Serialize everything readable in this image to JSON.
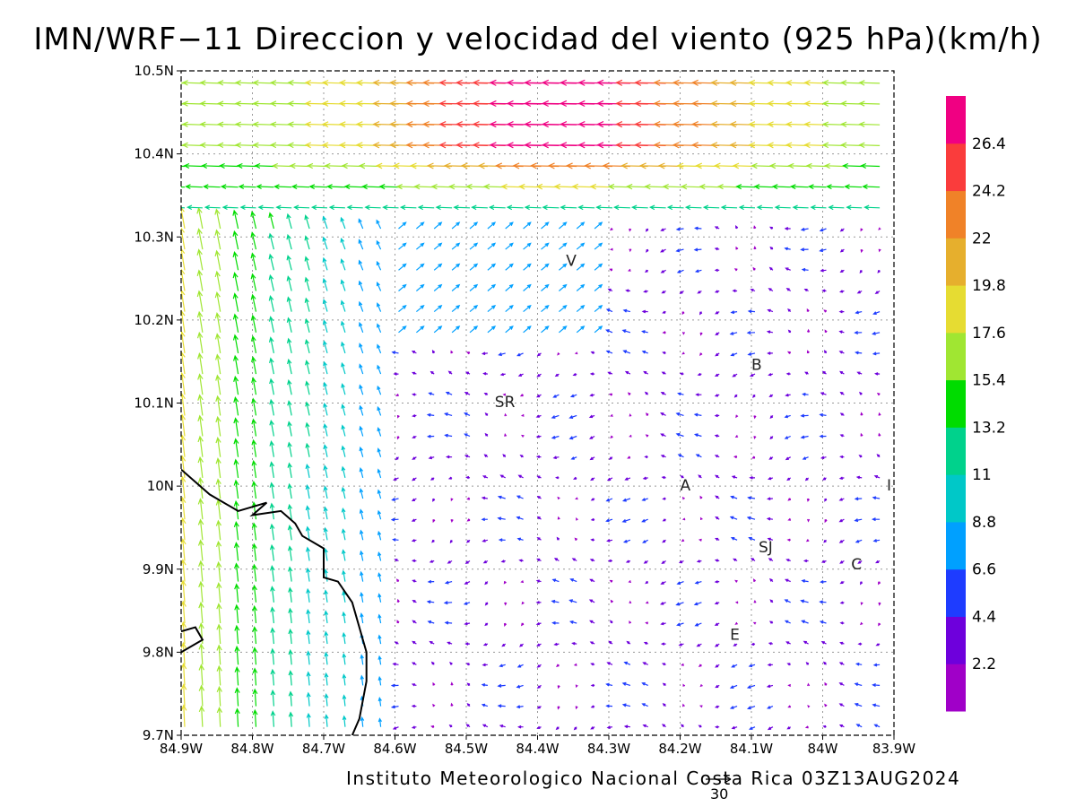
{
  "title": "IMN/WRF−11 Direccion y velocidad del viento (925 hPa)(km/h)",
  "credit": "Instituto Meteorologico Nacional Costa Rica 03Z13AUG2024",
  "ref_vector": {
    "value": "30",
    "units": "km/h"
  },
  "chart_data": {
    "type": "wind-vector-map",
    "variable": "Direccion y velocidad del viento",
    "level": "925 hPa",
    "units": "km/h",
    "valid_time": "03Z13AUG2024",
    "model": "IMN/WRF-11",
    "xlim": [
      -84.9,
      -83.9
    ],
    "ylim": [
      9.7,
      10.5
    ],
    "x_ticks": [
      "84.9W",
      "84.8W",
      "84.7W",
      "84.6W",
      "84.5W",
      "84.4W",
      "84.3W",
      "84.2W",
      "84.1W",
      "84W",
      "83.9W"
    ],
    "y_ticks": [
      "9.7N",
      "9.8N",
      "9.9N",
      "10N",
      "10.1N",
      "10.2N",
      "10.3N",
      "10.4N",
      "10.5N"
    ],
    "grid": true,
    "colorbar_levels": [
      "2.2",
      "4.4",
      "6.6",
      "8.8",
      "11",
      "13.2",
      "15.4",
      "17.6",
      "19.8",
      "22",
      "24.2",
      "26.4"
    ],
    "colorbar_colors": [
      "#a000c8",
      "#6e00dc",
      "#1e3cff",
      "#00a0ff",
      "#00c8c8",
      "#00d28c",
      "#00dc00",
      "#a0e632",
      "#e6dc32",
      "#e6af2d",
      "#f08228",
      "#fa3c3c",
      "#f00082"
    ],
    "place_labels": [
      {
        "text": "V",
        "lon": -84.36,
        "lat": 10.265
      },
      {
        "text": "B",
        "lon": -84.1,
        "lat": 10.14
      },
      {
        "text": "SR",
        "lon": -84.46,
        "lat": 10.095
      },
      {
        "text": "A",
        "lon": -84.2,
        "lat": 9.995
      },
      {
        "text": "I",
        "lon": -83.91,
        "lat": 9.995
      },
      {
        "text": "SJ",
        "lon": -84.09,
        "lat": 9.92
      },
      {
        "text": "C",
        "lon": -83.96,
        "lat": 9.9
      },
      {
        "text": "E",
        "lon": -84.13,
        "lat": 9.815
      }
    ],
    "coastline": [
      [
        [
          -84.9,
          10.02
        ],
        [
          -84.86,
          9.99
        ],
        [
          -84.82,
          9.97
        ],
        [
          -84.78,
          9.98
        ],
        [
          -84.8,
          9.965
        ],
        [
          -84.76,
          9.97
        ],
        [
          -84.74,
          9.955
        ],
        [
          -84.73,
          9.94
        ],
        [
          -84.7,
          9.925
        ],
        [
          -84.7,
          9.89
        ],
        [
          -84.68,
          9.885
        ],
        [
          -84.66,
          9.86
        ],
        [
          -84.64,
          9.8
        ],
        [
          -84.64,
          9.765
        ],
        [
          -84.65,
          9.72
        ],
        [
          -84.66,
          9.7
        ]
      ],
      [
        [
          -84.9,
          9.8
        ],
        [
          -84.87,
          9.815
        ],
        [
          -84.88,
          9.83
        ],
        [
          -84.9,
          9.825
        ]
      ]
    ]
  }
}
